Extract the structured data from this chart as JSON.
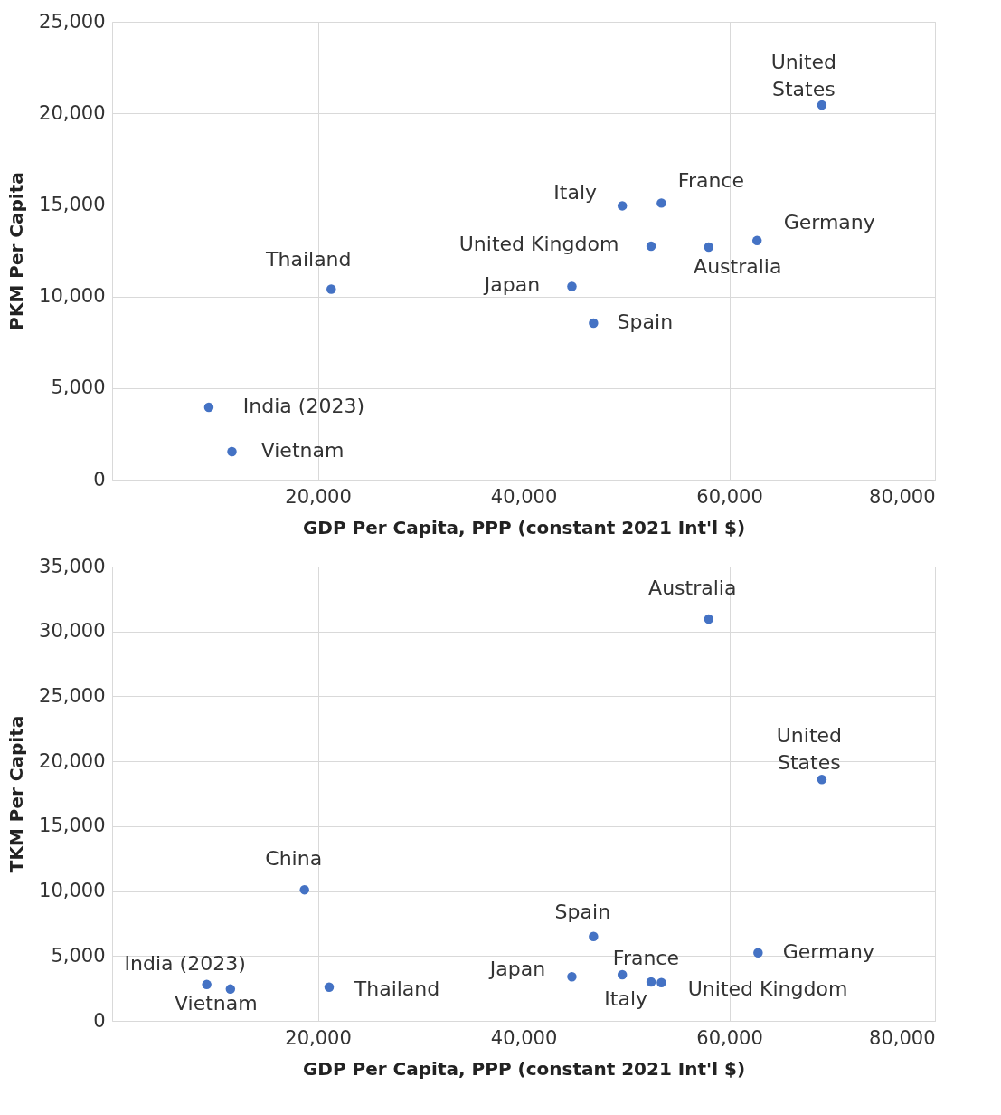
{
  "chart_data": [
    {
      "type": "scatter",
      "xlabel": "GDP Per Capita, PPP (constant 2021 Int'l $)",
      "ylabel": "PKM Per Capita",
      "xlim": [
        0,
        80000
      ],
      "xticks": [
        {
          "value": 20000,
          "label": "20,000"
        },
        {
          "value": 40000,
          "label": "40,000"
        },
        {
          "value": 60000,
          "label": "60,000"
        },
        {
          "value": 80000,
          "label": "80,000"
        }
      ],
      "ylim": [
        0,
        25000
      ],
      "yticks": [
        0,
        {
          "value": 5000,
          "label": "5,000"
        },
        {
          "value": 10000,
          "label": "10,000"
        },
        {
          "value": 15000,
          "label": "15,000"
        },
        {
          "value": 20000,
          "label": "20,000"
        },
        {
          "value": 25000,
          "label": "25,000"
        }
      ],
      "grid": true,
      "marker": "circle",
      "series": [
        {
          "color": "#4472c4",
          "x": [
            9400,
            11650,
            21300,
            44700,
            46800,
            49600,
            52400,
            53400,
            58000,
            62700,
            69000
          ],
          "values": [
            3950,
            1530,
            10400,
            10550,
            8550,
            14950,
            12750,
            15100,
            12700,
            13050,
            20450
          ]
        }
      ],
      "annotations": [
        {
          "text": "India (2023)",
          "x": 9400,
          "y": 3950
        },
        {
          "text": "Vietnam",
          "x": 11650,
          "y": 1530
        },
        {
          "text": "Thailand",
          "x": 21300,
          "y": 10400
        },
        {
          "text": "Japan",
          "x": 44700,
          "y": 10550
        },
        {
          "text": "Spain",
          "x": 46800,
          "y": 8550
        },
        {
          "text": "Italy",
          "x": 49600,
          "y": 14950
        },
        {
          "text": "United Kingdom",
          "x": 52400,
          "y": 12750
        },
        {
          "text": "France",
          "x": 53400,
          "y": 15100
        },
        {
          "text": "Australia",
          "x": 58000,
          "y": 12700
        },
        {
          "text": "Germany",
          "x": 62700,
          "y": 13050
        },
        {
          "text": "United States",
          "x": 69000,
          "y": 20450
        }
      ]
    },
    {
      "type": "scatter",
      "xlabel": "GDP Per Capita, PPP (constant 2021 Int'l $)",
      "ylabel": "TKM Per Capita",
      "xlim": [
        0,
        80000
      ],
      "xticks": [
        {
          "value": 20000,
          "label": "20,000"
        },
        {
          "value": 40000,
          "label": "40,000"
        },
        {
          "value": 60000,
          "label": "60,000"
        },
        {
          "value": 80000,
          "label": "80,000"
        }
      ],
      "ylim": [
        0,
        35000
      ],
      "yticks": [
        0,
        {
          "value": 5000,
          "label": "5,000"
        },
        {
          "value": 10000,
          "label": "10,000"
        },
        {
          "value": 15000,
          "label": "15,000"
        },
        {
          "value": 20000,
          "label": "20,000"
        },
        {
          "value": 25000,
          "label": "25,000"
        },
        {
          "value": 30000,
          "label": "30,000"
        },
        {
          "value": 35000,
          "label": "35,000"
        }
      ],
      "grid": true,
      "marker": "circle",
      "series": [
        {
          "color": "#4472c4",
          "x": [
            9200,
            11500,
            18700,
            21100,
            44700,
            46800,
            49600,
            52400,
            53400,
            58000,
            62800,
            69000
          ],
          "values": [
            2800,
            2450,
            10100,
            2600,
            3400,
            6500,
            3550,
            3000,
            2950,
            30950,
            5250,
            18600
          ]
        }
      ],
      "annotations": [
        {
          "text": "India (2023)",
          "x": 9200,
          "y": 2800
        },
        {
          "text": "Vietnam",
          "x": 11500,
          "y": 2450
        },
        {
          "text": "China",
          "x": 18700,
          "y": 10100
        },
        {
          "text": "Thailand",
          "x": 21100,
          "y": 2600
        },
        {
          "text": "Japan",
          "x": 44700,
          "y": 3400
        },
        {
          "text": "Spain",
          "x": 46800,
          "y": 6500
        },
        {
          "text": "Italy",
          "x": 49600,
          "y": 3550
        },
        {
          "text": "United Kingdom",
          "x": 52400,
          "y": 3000
        },
        {
          "text": "France",
          "x": 53400,
          "y": 2950
        },
        {
          "text": "Australia",
          "x": 58000,
          "y": 30950
        },
        {
          "text": "Germany",
          "x": 62800,
          "y": 5250
        },
        {
          "text": "United States",
          "x": 69000,
          "y": 18600
        }
      ]
    }
  ]
}
